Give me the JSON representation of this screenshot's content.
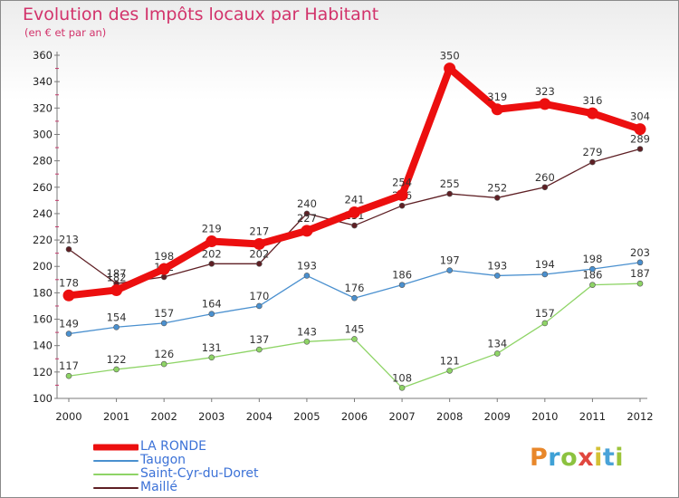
{
  "header": {
    "title": "Evolution des Impôts locaux par Habitant",
    "subtitle": "(en € et par an)"
  },
  "logo": {
    "text": "Proxiti",
    "letter_colors": [
      "#e8872a",
      "#3fa1d6",
      "#8cc23f",
      "#e0473f",
      "#d4c135",
      "#4aa3d8",
      "#9cc43a"
    ]
  },
  "chart_data": {
    "type": "line",
    "title": "Evolution des Impôts locaux par Habitant",
    "subtitle": "(en € et par an)",
    "xlabel": "",
    "ylabel": "",
    "x": [
      "2000",
      "2001",
      "2002",
      "2003",
      "2004",
      "2005",
      "2006",
      "2007",
      "2008",
      "2009",
      "2010",
      "2011",
      "2012"
    ],
    "ylim": [
      100,
      360
    ],
    "yticks": [
      100,
      120,
      140,
      160,
      180,
      200,
      220,
      240,
      260,
      280,
      300,
      320,
      340,
      360
    ],
    "grid": false,
    "legend_position": "bottom-left",
    "series": [
      {
        "name": "Maillé",
        "color": "#5e1f24",
        "values": [
          213,
          187,
          192,
          202,
          202,
          240,
          231,
          246,
          255,
          252,
          260,
          279,
          289
        ],
        "labels": [
          "213",
          "187",
          "192",
          "202",
          "202",
          "240",
          "231",
          "246",
          "255",
          "252",
          "260",
          "279",
          "289"
        ]
      },
      {
        "name": "Saint-Cyr-du-Doret",
        "color": "#8ed466",
        "values": [
          117,
          122,
          126,
          131,
          137,
          143,
          145,
          108,
          121,
          134,
          157,
          186,
          187
        ],
        "labels": [
          "117",
          "122",
          "126",
          "131",
          "137",
          "143",
          "145",
          "108",
          "121",
          "134",
          "157",
          "186",
          "187"
        ]
      },
      {
        "name": "Taugon",
        "color": "#4a90cf",
        "values": [
          149,
          154,
          157,
          164,
          170,
          193,
          176,
          186,
          197,
          193,
          194,
          198,
          203
        ],
        "labels": [
          "149",
          "154",
          "157",
          "164",
          "170",
          "193",
          "176",
          "186",
          "197",
          "193",
          "194",
          "198",
          "203"
        ]
      },
      {
        "name": "LA RONDE",
        "color": "#ec0f0f",
        "values": [
          178,
          182,
          198,
          219,
          217,
          227,
          241,
          254,
          350,
          319,
          323,
          316,
          304
        ],
        "labels": [
          "178",
          "182",
          "198",
          "219",
          "217",
          "227",
          "241",
          "254",
          "350",
          "319",
          "323",
          "316",
          "304"
        ]
      }
    ],
    "legend_order": [
      "LA RONDE",
      "Taugon",
      "Saint-Cyr-du-Doret",
      "Maillé"
    ]
  }
}
